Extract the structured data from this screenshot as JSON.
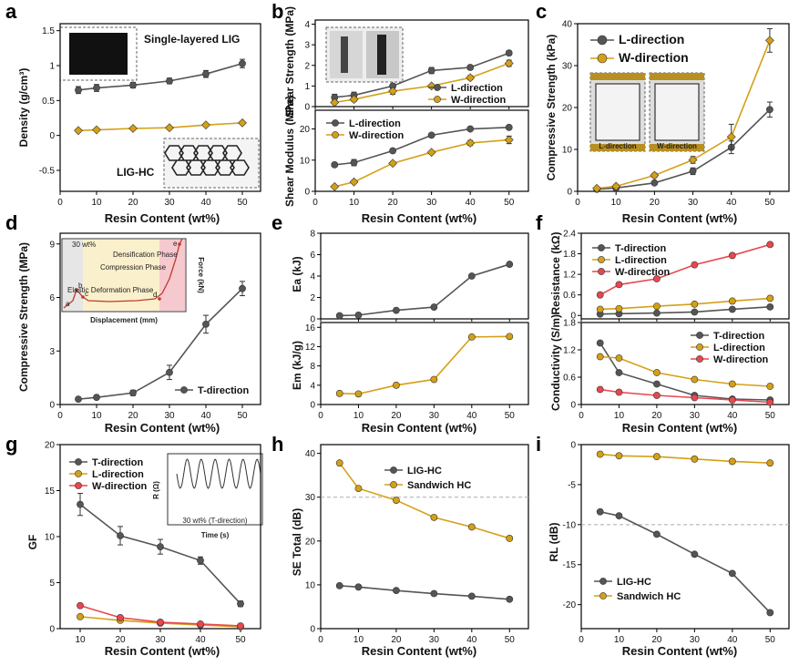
{
  "colors": {
    "gray": "#555555",
    "gold": "#D4A017",
    "red": "#E8474F",
    "ref_line": "#aaaaaa"
  },
  "chart_data": [
    {
      "id": "a",
      "type": "line",
      "panel_label": "a",
      "xlabel": "Resin Content (wt%)",
      "ylabel": "Density (g/cm³)",
      "xlim": [
        0,
        55
      ],
      "ylim": [
        -0.8,
        1.6
      ],
      "xticks": [
        0,
        10,
        20,
        30,
        40,
        50
      ],
      "yticks": [
        -0.5,
        0.0,
        0.5,
        1.0,
        1.5
      ],
      "x": [
        5,
        10,
        20,
        30,
        40,
        50
      ],
      "series": [
        {
          "name": "Single-layered LIG",
          "color": "gray",
          "marker": "circle",
          "values": [
            0.65,
            0.68,
            0.72,
            0.78,
            0.88,
            1.03
          ],
          "errors": [
            0.05,
            0.05,
            0.04,
            0.04,
            0.05,
            0.06
          ]
        },
        {
          "name": "LIG-HC",
          "color": "gold",
          "marker": "diamond",
          "values": [
            0.07,
            0.08,
            0.1,
            0.11,
            0.15,
            0.18
          ],
          "errors": [
            0.02,
            0.02,
            0.02,
            0.02,
            0.02,
            0.02
          ]
        }
      ],
      "annotations": [
        "Single-layered LIG",
        "LIG-HC"
      ]
    },
    {
      "id": "b1",
      "type": "line",
      "panel_label": "b",
      "ylabel": "Shear Strength (MPa)",
      "xlim": [
        0,
        55
      ],
      "ylim": [
        0,
        4.2
      ],
      "yticks": [
        0,
        1,
        2,
        3,
        4
      ],
      "x": [
        5,
        10,
        20,
        30,
        40,
        50
      ],
      "series": [
        {
          "name": "L-direction",
          "color": "gray",
          "marker": "circle",
          "values": [
            0.45,
            0.55,
            1.0,
            1.75,
            1.9,
            2.6
          ],
          "errors": [
            0.15,
            0.15,
            0.1,
            0.15,
            0.1,
            0.1
          ]
        },
        {
          "name": "W-direction",
          "color": "gold",
          "marker": "diamond",
          "values": [
            0.2,
            0.35,
            0.75,
            1.0,
            1.4,
            2.1
          ],
          "errors": [
            0.05,
            0.1,
            0.15,
            0.05,
            0.1,
            0.15
          ]
        }
      ]
    },
    {
      "id": "b2",
      "type": "line",
      "xlabel": "Resin Content (wt%)",
      "ylabel": "Shear Modulus (MPa)",
      "xlim": [
        0,
        55
      ],
      "ylim": [
        0,
        26
      ],
      "xticks": [
        0,
        10,
        20,
        30,
        40,
        50
      ],
      "yticks": [
        0,
        10,
        20
      ],
      "x": [
        5,
        10,
        20,
        30,
        40,
        50
      ],
      "series": [
        {
          "name": "L-direction",
          "color": "gray",
          "marker": "circle",
          "values": [
            8.5,
            9.2,
            13.0,
            18.0,
            20.0,
            20.5
          ],
          "errors": [
            0.6,
            1.0,
            0.5,
            0.5,
            0.5,
            0.5
          ]
        },
        {
          "name": "W-direction",
          "color": "gold",
          "marker": "diamond",
          "values": [
            1.5,
            3.0,
            9.0,
            12.5,
            15.5,
            16.5
          ],
          "errors": [
            0.3,
            0.3,
            0.5,
            0.5,
            0.8,
            1.2
          ]
        }
      ]
    },
    {
      "id": "c",
      "type": "line",
      "panel_label": "c",
      "xlabel": "Resin Content (wt%)",
      "ylabel": "Compressive Strength (kPa)",
      "xlim": [
        0,
        55
      ],
      "ylim": [
        0,
        40
      ],
      "xticks": [
        0,
        10,
        20,
        30,
        40,
        50
      ],
      "yticks": [
        0,
        10,
        20,
        30,
        40
      ],
      "x": [
        5,
        10,
        20,
        30,
        40,
        50
      ],
      "series": [
        {
          "name": "L-direction",
          "color": "gray",
          "marker": "circle",
          "values": [
            0.5,
            0.8,
            2.0,
            4.8,
            10.5,
            19.5
          ],
          "errors": [
            0.3,
            0.3,
            0.4,
            0.8,
            1.5,
            1.8
          ]
        },
        {
          "name": "W-direction",
          "color": "gold",
          "marker": "diamond",
          "values": [
            0.7,
            1.2,
            3.8,
            7.5,
            13.0,
            36.0
          ],
          "errors": [
            0.3,
            0.3,
            0.5,
            0.8,
            3.0,
            2.8
          ]
        }
      ],
      "annotations": [
        "L-direction",
        "W-direction"
      ]
    },
    {
      "id": "d",
      "type": "line",
      "panel_label": "d",
      "xlabel": "Resin Content (wt%)",
      "ylabel": "Compressive Strength (MPa)",
      "xlim": [
        0,
        55
      ],
      "ylim": [
        0,
        9.6
      ],
      "xticks": [
        0,
        10,
        20,
        30,
        40,
        50
      ],
      "yticks": [
        0,
        3,
        6,
        9
      ],
      "x": [
        5,
        10,
        20,
        30,
        40,
        50
      ],
      "series": [
        {
          "name": "T-direction",
          "color": "gray",
          "marker": "circle",
          "values": [
            0.3,
            0.4,
            0.65,
            1.8,
            4.5,
            6.5
          ],
          "errors": [
            0.1,
            0.1,
            0.15,
            0.4,
            0.5,
            0.4
          ]
        }
      ],
      "inset": {
        "legend": "30 wt%",
        "xlabel": "Displacement (mm)",
        "ylabel": "Force (kN)",
        "xticks": [
          0,
          2,
          4
        ],
        "yticks": [
          0.0,
          0.5,
          1.0,
          1.5,
          2.0
        ],
        "phases": [
          "Elastic Deformation Phase",
          "Compression Phase",
          "Densification Phase"
        ],
        "points": [
          "a",
          "b",
          "c",
          "d",
          "e"
        ]
      }
    },
    {
      "id": "e1",
      "type": "line",
      "panel_label": "e",
      "ylabel": "Ea (kJ)",
      "ylim": [
        0,
        8
      ],
      "yticks": [
        0,
        2,
        4,
        6,
        8
      ],
      "x": [
        5,
        10,
        20,
        30,
        40,
        50
      ],
      "series": [
        {
          "name": "Ea",
          "color": "gray",
          "marker": "circle",
          "values": [
            0.3,
            0.35,
            0.8,
            1.1,
            4.0,
            5.1
          ]
        }
      ]
    },
    {
      "id": "e2",
      "type": "line",
      "xlabel": "Resin Content (wt%)",
      "ylabel": "Em (kJ/g)",
      "xlim": [
        0,
        55
      ],
      "ylim": [
        0,
        17
      ],
      "xticks": [
        0,
        10,
        20,
        30,
        40,
        50
      ],
      "yticks": [
        0,
        4,
        8,
        12,
        16
      ],
      "x": [
        5,
        10,
        20,
        30,
        40,
        50
      ],
      "series": [
        {
          "name": "Em",
          "color": "gold",
          "marker": "circle",
          "values": [
            2.3,
            2.2,
            4.0,
            5.2,
            14.0,
            14.1
          ]
        }
      ]
    },
    {
      "id": "f1",
      "type": "line",
      "panel_label": "f",
      "ylabel": "Resistance (kΩ)",
      "ylim": [
        -0.1,
        2.4
      ],
      "yticks": [
        0.0,
        0.6,
        1.2,
        1.8,
        2.4
      ],
      "x": [
        5,
        10,
        20,
        30,
        40,
        50
      ],
      "series": [
        {
          "name": "T-direction",
          "color": "gray",
          "marker": "circle",
          "values": [
            0.04,
            0.05,
            0.07,
            0.1,
            0.18,
            0.25
          ]
        },
        {
          "name": "L-direction",
          "color": "gold",
          "marker": "circle",
          "values": [
            0.18,
            0.2,
            0.27,
            0.33,
            0.42,
            0.5
          ]
        },
        {
          "name": "W-direction",
          "color": "red",
          "marker": "circle",
          "values": [
            0.6,
            0.9,
            1.07,
            1.48,
            1.75,
            2.07
          ]
        }
      ]
    },
    {
      "id": "f2",
      "type": "line",
      "xlabel": "Resin Content (wt%)",
      "ylabel": "Conductivity (S/m)",
      "xlim": [
        0,
        55
      ],
      "ylim": [
        0,
        1.8
      ],
      "xticks": [
        0,
        10,
        20,
        30,
        40,
        50
      ],
      "yticks": [
        0.0,
        0.6,
        1.2,
        1.8
      ],
      "x": [
        5,
        10,
        20,
        30,
        40,
        50
      ],
      "series": [
        {
          "name": "T-direction",
          "color": "gray",
          "marker": "circle",
          "values": [
            1.35,
            0.7,
            0.45,
            0.2,
            0.12,
            0.1
          ]
        },
        {
          "name": "L-direction",
          "color": "gold",
          "marker": "circle",
          "values": [
            1.05,
            1.02,
            0.7,
            0.55,
            0.45,
            0.4
          ]
        },
        {
          "name": "W-direction",
          "color": "red",
          "marker": "circle",
          "values": [
            0.33,
            0.27,
            0.2,
            0.15,
            0.1,
            0.05
          ]
        }
      ]
    },
    {
      "id": "g",
      "type": "line",
      "panel_label": "g",
      "xlabel": "Resin Content (wt%)",
      "ylabel": "GF",
      "xlim": [
        5,
        55
      ],
      "ylim": [
        0,
        20
      ],
      "xticks": [
        10,
        20,
        30,
        40,
        50
      ],
      "yticks": [
        0,
        5,
        10,
        15,
        20
      ],
      "x": [
        10,
        20,
        30,
        40,
        50
      ],
      "series": [
        {
          "name": "T-direction",
          "color": "gray",
          "marker": "circle",
          "values": [
            13.5,
            10.1,
            8.9,
            7.4,
            2.7
          ],
          "errors": [
            1.2,
            1.0,
            0.8,
            0.4,
            0.3
          ]
        },
        {
          "name": "L-direction",
          "color": "gold",
          "marker": "circle",
          "values": [
            1.3,
            0.9,
            0.6,
            0.4,
            0.2
          ]
        },
        {
          "name": "W-direction",
          "color": "red",
          "marker": "circle",
          "values": [
            2.5,
            1.2,
            0.7,
            0.5,
            0.3
          ]
        }
      ],
      "inset": {
        "legend": "30 wt% (T-direction)",
        "xlabel": "Time (s)",
        "ylabel": "R (Ω)",
        "xticks": [
          0,
          50,
          100,
          150,
          200
        ],
        "yticks": [
          60,
          61,
          62,
          63,
          64,
          65
        ]
      }
    },
    {
      "id": "h",
      "type": "line",
      "panel_label": "h",
      "xlabel": "Resin Content (wt%)",
      "ylabel": "SE Total (dB)",
      "xlim": [
        0,
        55
      ],
      "ylim": [
        0,
        42
      ],
      "xticks": [
        0,
        10,
        20,
        30,
        40,
        50
      ],
      "yticks": [
        0,
        10,
        20,
        30,
        40
      ],
      "x": [
        5,
        10,
        20,
        30,
        40,
        50
      ],
      "series": [
        {
          "name": "LIG-HC",
          "color": "gray",
          "marker": "circle",
          "values": [
            9.8,
            9.5,
            8.7,
            8.0,
            7.4,
            6.7
          ]
        },
        {
          "name": "Sandwich HC",
          "color": "gold",
          "marker": "circle",
          "values": [
            37.8,
            32.0,
            29.3,
            25.4,
            23.2,
            20.6
          ]
        }
      ],
      "ref_line": 30
    },
    {
      "id": "i",
      "type": "line",
      "panel_label": "i",
      "xlabel": "Resin Content (wt%)",
      "ylabel": "RL (dB)",
      "xlim": [
        0,
        55
      ],
      "ylim": [
        -23,
        0
      ],
      "xticks": [
        0,
        10,
        20,
        30,
        40,
        50
      ],
      "yticks": [
        -20,
        -15,
        -10,
        -5,
        0
      ],
      "x": [
        5,
        10,
        20,
        30,
        40,
        50
      ],
      "series": [
        {
          "name": "LIG-HC",
          "color": "gray",
          "marker": "circle",
          "values": [
            -8.4,
            -8.9,
            -11.2,
            -13.7,
            -16.1,
            -21.0
          ]
        },
        {
          "name": "Sandwich HC",
          "color": "gold",
          "marker": "circle",
          "values": [
            -1.2,
            -1.4,
            -1.5,
            -1.8,
            -2.1,
            -2.3
          ]
        }
      ],
      "ref_line": -10
    }
  ]
}
